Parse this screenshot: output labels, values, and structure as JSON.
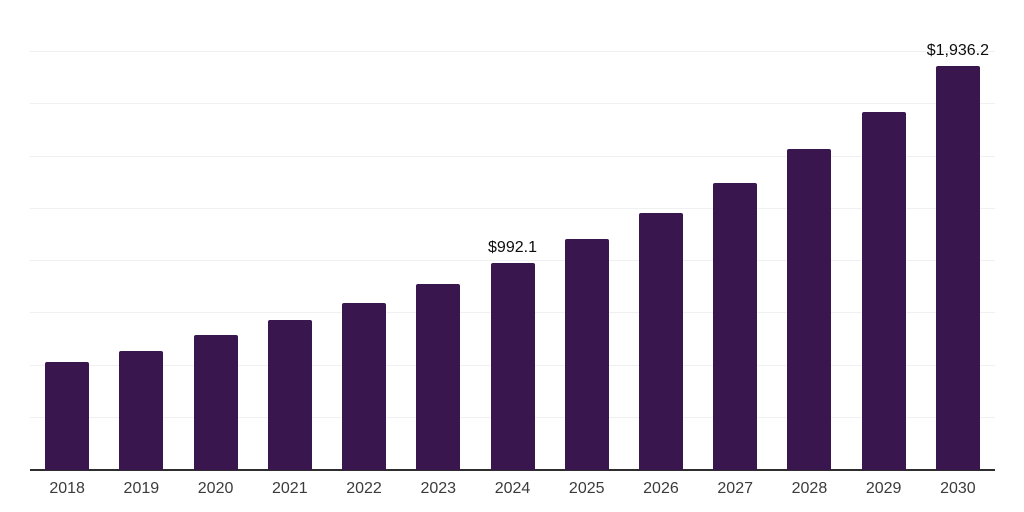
{
  "chart_data": {
    "type": "bar",
    "title": "",
    "xlabel": "",
    "ylabel": "",
    "categories": [
      "2018",
      "2019",
      "2020",
      "2021",
      "2022",
      "2023",
      "2024",
      "2025",
      "2026",
      "2027",
      "2028",
      "2029",
      "2030"
    ],
    "values": [
      519,
      570,
      645,
      720,
      801,
      892,
      992.1,
      1105,
      1232,
      1374,
      1535,
      1716,
      1936.2
    ],
    "value_labels": [
      "",
      "",
      "",
      "",
      "",
      "",
      "$992.1",
      "",
      "",
      "",
      "",
      "",
      "$1,936.2"
    ],
    "ylim": [
      0,
      2250
    ],
    "gridline_step": 250,
    "grid": true,
    "legend": false,
    "y_tick_labels_shown": false
  },
  "style": {
    "background_color": "#ffffff",
    "bar_color": "#3a164f",
    "gridline_color": "#f0f0f2",
    "axis_line_color": "#2e2e2e",
    "tick_label_color": "#3b3b3b",
    "data_label_color": "#0d0d0d"
  }
}
